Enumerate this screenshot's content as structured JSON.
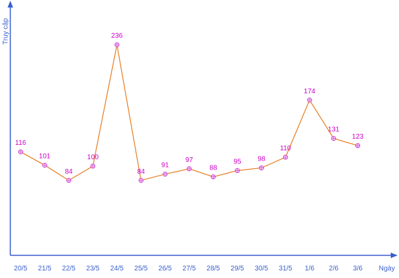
{
  "chart_data": {
    "type": "line",
    "xlabel": "Ngày",
    "ylabel": "Truy cập",
    "categories": [
      "20/5",
      "21/5",
      "22/5",
      "23/5",
      "24/5",
      "25/5",
      "26/5",
      "27/5",
      "28/5",
      "29/5",
      "30/5",
      "31/5",
      "1/6",
      "2/6",
      "3/6"
    ],
    "values": [
      116,
      101,
      84,
      100,
      236,
      84,
      91,
      97,
      88,
      95,
      98,
      110,
      174,
      131,
      123
    ],
    "ylim": [
      0,
      280
    ],
    "grid": false,
    "show_data_labels": true,
    "colors": {
      "axis": "#3a5fcd",
      "line": "#e67e22",
      "marker": "#cc33cc",
      "data_label": "#cc00cc",
      "tick_label": "#3a5fcd"
    }
  }
}
